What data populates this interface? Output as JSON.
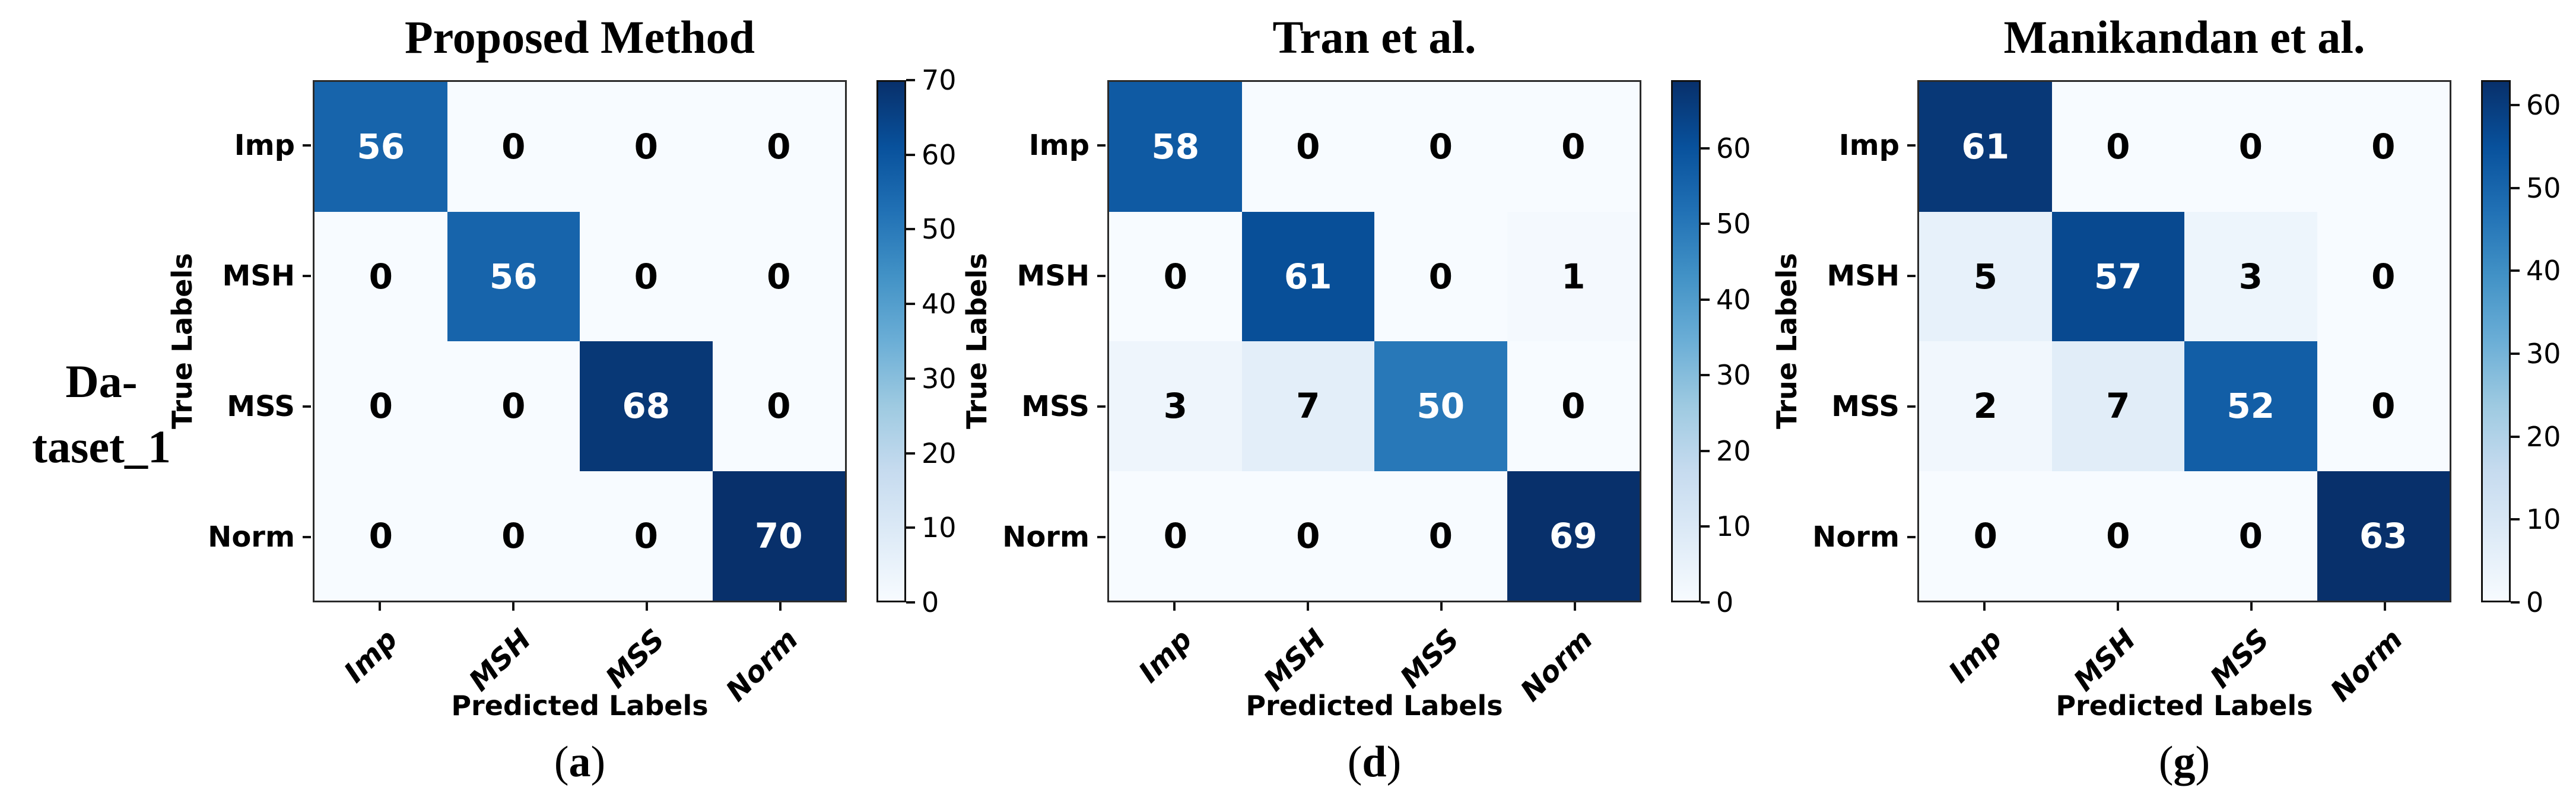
{
  "figure_label": {
    "line1": "Da-",
    "line2": "taset_1"
  },
  "chart_data": [
    {
      "type": "heatmap",
      "title": "Proposed Method",
      "caption": "(a)",
      "caption_letter": "a",
      "xlabel": "Predicted Labels",
      "ylabel": "True Labels",
      "x_categories": [
        "Imp",
        "MSH",
        "MSS",
        "Norm"
      ],
      "y_categories": [
        "Imp",
        "MSH",
        "MSS",
        "Norm"
      ],
      "matrix": [
        [
          56,
          0,
          0,
          0
        ],
        [
          0,
          56,
          0,
          0
        ],
        [
          0,
          0,
          68,
          0
        ],
        [
          0,
          0,
          0,
          70
        ]
      ],
      "vmin": 0,
      "vmax": 70,
      "colorbar_ticks": [
        0,
        10,
        20,
        30,
        40,
        50,
        60,
        70
      ],
      "colormap": "Blues",
      "legend_position": "right-colorbar",
      "grid": false
    },
    {
      "type": "heatmap",
      "title": "Tran et al.",
      "caption": "(d)",
      "caption_letter": "d",
      "xlabel": "Predicted Labels",
      "ylabel": "True Labels",
      "x_categories": [
        "Imp",
        "MSH",
        "MSS",
        "Norm"
      ],
      "y_categories": [
        "Imp",
        "MSH",
        "MSS",
        "Norm"
      ],
      "matrix": [
        [
          58,
          0,
          0,
          0
        ],
        [
          0,
          61,
          0,
          1
        ],
        [
          3,
          7,
          50,
          0
        ],
        [
          0,
          0,
          0,
          69
        ]
      ],
      "vmin": 0,
      "vmax": 69,
      "colorbar_ticks": [
        0,
        10,
        20,
        30,
        40,
        50,
        60
      ],
      "colormap": "Blues",
      "legend_position": "right-colorbar",
      "grid": false
    },
    {
      "type": "heatmap",
      "title": "Manikandan et al.",
      "caption": "(g)",
      "caption_letter": "g",
      "xlabel": "Predicted Labels",
      "ylabel": "True Labels",
      "x_categories": [
        "Imp",
        "MSH",
        "MSS",
        "Norm"
      ],
      "y_categories": [
        "Imp",
        "MSH",
        "MSS",
        "Norm"
      ],
      "matrix": [
        [
          61,
          0,
          0,
          0
        ],
        [
          5,
          57,
          3,
          0
        ],
        [
          2,
          7,
          52,
          0
        ],
        [
          0,
          0,
          0,
          63
        ]
      ],
      "vmin": 0,
      "vmax": 63,
      "colorbar_ticks": [
        0,
        10,
        20,
        30,
        40,
        50,
        60
      ],
      "colormap": "Blues",
      "legend_position": "right-colorbar",
      "grid": false
    }
  ],
  "colors": {
    "blues_scale": [
      "#f7fbff",
      "#deebf7",
      "#c6dbef",
      "#9ecae1",
      "#6baed6",
      "#4292c6",
      "#2171b5",
      "#08519c",
      "#08306b"
    ],
    "cell_text_light": "#ffffff",
    "cell_text_dark": "#000000",
    "spine": "#2b2b2b",
    "background": "#ffffff"
  }
}
